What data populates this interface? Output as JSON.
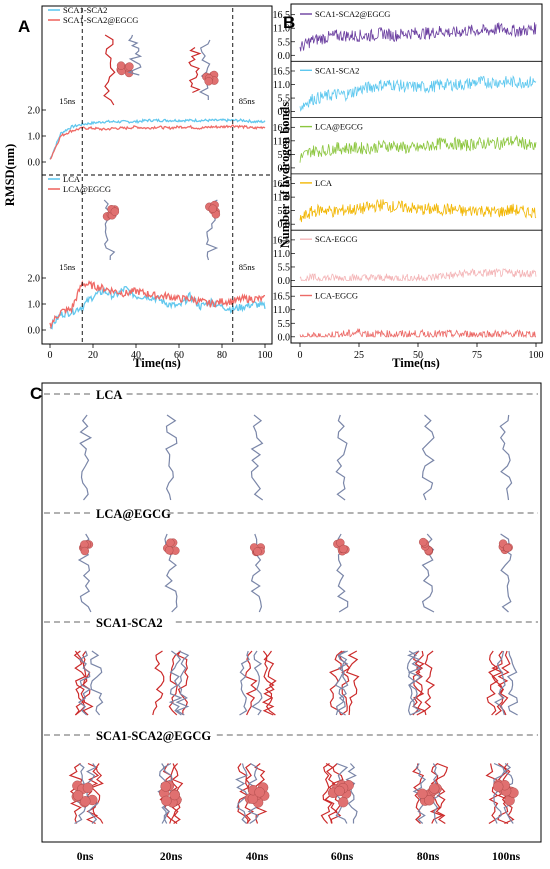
{
  "panel_letters": [
    "A",
    "B",
    "C"
  ],
  "colors": {
    "sca1_sca2": "#62c8ee",
    "sca1_sca2_egcg": "#ef6a66",
    "lca": "#62c8ee",
    "lca_egcg": "#ef6a66",
    "B_series": [
      "#6b3fa0",
      "#5ec8ef",
      "#8cc63f",
      "#f2b705",
      "#f4b6b8",
      "#ec6a67"
    ],
    "chain_blue": "#7a86a8",
    "chain_red": "#cc2b2b",
    "egcg": "#e07070"
  },
  "chart_data": [
    {
      "type": "line",
      "panel": "A-top",
      "x": [
        0,
        5,
        10,
        15,
        20,
        25,
        30,
        35,
        40,
        45,
        50,
        55,
        60,
        65,
        70,
        75,
        80,
        85,
        90,
        95,
        100
      ],
      "series": [
        {
          "name": "SCA1-SCA2",
          "values": [
            0.1,
            1.1,
            1.35,
            1.45,
            1.5,
            1.55,
            1.55,
            1.55,
            1.55,
            1.6,
            1.6,
            1.6,
            1.6,
            1.6,
            1.6,
            1.6,
            1.6,
            1.6,
            1.6,
            1.55,
            1.55
          ]
        },
        {
          "name": "SCA1-SCA2@EGCG",
          "values": [
            0.1,
            1.0,
            1.2,
            1.3,
            1.3,
            1.25,
            1.3,
            1.3,
            1.35,
            1.3,
            1.35,
            1.3,
            1.35,
            1.35,
            1.3,
            1.35,
            1.35,
            1.4,
            1.35,
            1.3,
            1.35
          ]
        }
      ],
      "yticks": [
        "0.0",
        "1.0",
        "2.0"
      ],
      "ylim": [
        0,
        2.6
      ],
      "annotations": [
        "15ns",
        "85ns"
      ]
    },
    {
      "type": "line",
      "panel": "A-bottom",
      "x": [
        0,
        5,
        10,
        15,
        20,
        25,
        30,
        35,
        40,
        45,
        50,
        55,
        60,
        65,
        70,
        75,
        80,
        85,
        90,
        95,
        100
      ],
      "series": [
        {
          "name": "LCA",
          "values": [
            0.1,
            0.6,
            0.7,
            0.9,
            1.3,
            1.5,
            1.3,
            1.6,
            1.3,
            1.3,
            1.2,
            1.0,
            0.9,
            1.3,
            0.9,
            1.1,
            0.9,
            0.8,
            0.9,
            1.0,
            0.9
          ]
        },
        {
          "name": "LCA@EGCG",
          "values": [
            0.2,
            0.7,
            0.8,
            1.8,
            1.7,
            1.6,
            1.5,
            1.4,
            1.5,
            1.4,
            1.3,
            1.3,
            1.2,
            1.2,
            1.1,
            1.0,
            1.1,
            1.1,
            1.2,
            1.2,
            1.2
          ]
        }
      ],
      "yticks": [
        "0.0",
        "1.0",
        "2.0"
      ],
      "ylim": [
        0,
        2.6
      ],
      "annotations": [
        "15ns",
        "85ns"
      ]
    },
    {
      "type": "line",
      "panel": "B",
      "x": [
        0,
        5,
        10,
        15,
        20,
        25,
        30,
        35,
        40,
        45,
        50,
        55,
        60,
        65,
        70,
        75,
        80,
        85,
        90,
        95,
        100
      ],
      "series": [
        {
          "name": "SCA1-SCA2@EGCG",
          "values": [
            3,
            6,
            7,
            8,
            8,
            8,
            8,
            9,
            8,
            9,
            9,
            9,
            10,
            9,
            10,
            10,
            10,
            11,
            10,
            10,
            11
          ]
        },
        {
          "name": "SCA1-SCA2",
          "values": [
            2,
            5,
            6,
            7,
            7,
            9,
            10,
            11,
            11,
            10,
            10,
            10,
            11,
            11,
            11,
            12,
            12,
            12,
            12,
            12,
            12
          ]
        },
        {
          "name": "LCA@EGCG",
          "values": [
            4,
            7,
            7,
            8,
            8,
            8,
            8,
            9,
            9,
            8,
            8,
            9,
            10,
            10,
            9,
            10,
            10,
            10,
            11,
            10,
            8
          ]
        },
        {
          "name": "LCA",
          "values": [
            2,
            5,
            6,
            5,
            6,
            6,
            7,
            8,
            7,
            7,
            6,
            6,
            6,
            6,
            5,
            6,
            5,
            5,
            6,
            5,
            5
          ]
        },
        {
          "name": "SCA-EGCG",
          "values": [
            0,
            1,
            1,
            1,
            1,
            1,
            1,
            1,
            1,
            1,
            1,
            1,
            2,
            2,
            3,
            3,
            3,
            3,
            3,
            3,
            3
          ]
        },
        {
          "name": "LCA-EGCG",
          "values": [
            0,
            0,
            0,
            1,
            1,
            2,
            1,
            1,
            1,
            1,
            1,
            1,
            1,
            1,
            1,
            1,
            1,
            1,
            1,
            1,
            1
          ]
        }
      ],
      "yticks": [
        "0.0",
        "5.5",
        "11.0",
        "16.5"
      ],
      "ylim": [
        0,
        18
      ],
      "xticks": [
        "0",
        "25",
        "50",
        "75",
        "100"
      ]
    }
  ],
  "panelA": {
    "ylabel": "RMSD(nm)",
    "xlabel": "Time(ns)",
    "xticks": [
      "0",
      "20",
      "40",
      "60",
      "80",
      "100"
    ]
  },
  "panelB": {
    "ylabel": "Number of hydrogen bonds",
    "xlabel": "Time(ns)"
  },
  "panelC": {
    "rows": [
      "LCA",
      "LCA@EGCG",
      "SCA1-SCA2",
      "SCA1-SCA2@EGCG"
    ],
    "times": [
      "0ns",
      "20ns",
      "40ns",
      "60ns",
      "80ns",
      "100ns"
    ]
  }
}
